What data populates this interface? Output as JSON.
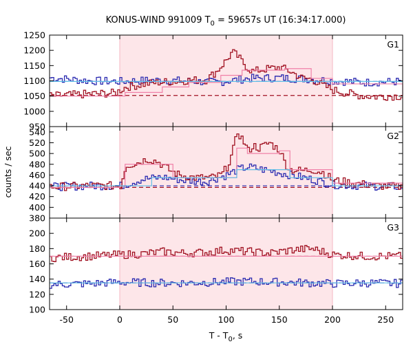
{
  "chart_data": {
    "type": "line",
    "title": "KONUS-WIND 991009 T",
    "title_sub": "0",
    "title_rest": " = 59657s UT (16:34:17.000)",
    "xlabel": "T - T",
    "xlabel_sub": "0",
    "xlabel_rest": ", s",
    "ylabel": "counts / sec",
    "xlim": [
      -66,
      266
    ],
    "xticks": [
      -50,
      0,
      50,
      100,
      150,
      200,
      250
    ],
    "shaded_interval": [
      0,
      200
    ],
    "shade_color": "#fde6e9",
    "grid": false,
    "panels": [
      {
        "name": "G1",
        "ylim": [
          950,
          1250
        ],
        "yticks": [
          950,
          1000,
          1050,
          1100,
          1150,
          1200,
          1250
        ],
        "red": {
          "color": "#a01020",
          "background": 1052,
          "fit_color": "#f080a8",
          "fit": [
            [
              -66,
              1050
            ],
            [
              5,
              1062
            ],
            [
              40,
              1080
            ],
            [
              65,
              1095
            ],
            [
              95,
              1118
            ],
            [
              115,
              1135
            ],
            [
              155,
              1140
            ],
            [
              180,
              1108
            ],
            [
              200,
              1090
            ],
            [
              266,
              1052
            ]
          ],
          "x": [
            -66,
            -30,
            -5,
            5,
            20,
            35,
            50,
            65,
            80,
            90,
            95,
            100,
            105,
            110,
            115,
            120,
            125,
            130,
            140,
            150,
            160,
            170,
            180,
            190,
            200,
            210,
            220,
            230,
            240,
            250,
            266
          ],
          "values": [
            1050,
            1057,
            1060,
            1080,
            1088,
            1095,
            1098,
            1102,
            1103,
            1130,
            1150,
            1170,
            1195,
            1180,
            1160,
            1140,
            1130,
            1135,
            1140,
            1145,
            1130,
            1110,
            1105,
            1085,
            1070,
            1062,
            1055,
            1050,
            1048,
            1050,
            1050
          ]
        },
        "blue": {
          "color": "#2a2ab0",
          "background": 1098,
          "fit_color": "#60c0e8",
          "fit": [
            [
              -66,
              1098
            ],
            [
              266,
              1098
            ]
          ],
          "x": [
            -66,
            -30,
            0,
            30,
            60,
            90,
            120,
            150,
            180,
            200,
            230,
            266
          ],
          "values": [
            1110,
            1100,
            1098,
            1102,
            1100,
            1095,
            1108,
            1110,
            1105,
            1100,
            1095,
            1098
          ]
        }
      },
      {
        "name": "G2",
        "ylim": [
          380,
          550
        ],
        "yticks": [
          380,
          400,
          420,
          440,
          460,
          480,
          500,
          520,
          540
        ],
        "red": {
          "color": "#a01020",
          "background": 437,
          "fit_color": "#f080a8",
          "fit": [
            [
              -66,
              437
            ],
            [
              0,
              440
            ],
            [
              5,
              480
            ],
            [
              40,
              480
            ],
            [
              50,
              455
            ],
            [
              95,
              455
            ],
            [
              110,
              510
            ],
            [
              120,
              500
            ],
            [
              150,
              505
            ],
            [
              160,
              470
            ],
            [
              185,
              470
            ],
            [
              200,
              445
            ],
            [
              266,
              440
            ]
          ],
          "x": [
            -66,
            -30,
            0,
            5,
            15,
            25,
            35,
            45,
            55,
            70,
            85,
            95,
            100,
            105,
            110,
            115,
            120,
            125,
            130,
            140,
            150,
            155,
            160,
            170,
            180,
            190,
            200,
            220,
            240,
            266
          ],
          "values": [
            438,
            440,
            440,
            478,
            482,
            490,
            485,
            470,
            460,
            455,
            455,
            460,
            475,
            500,
            540,
            525,
            505,
            515,
            510,
            520,
            505,
            480,
            470,
            468,
            470,
            465,
            450,
            445,
            440,
            438
          ]
        },
        "blue": {
          "color": "#2a2ab0",
          "background": 440,
          "fit_color": "#60c0e8",
          "fit": [
            [
              -66,
              440
            ],
            [
              0,
              440
            ],
            [
              30,
              455
            ],
            [
              100,
              455
            ],
            [
              110,
              470
            ],
            [
              150,
              470
            ],
            [
              160,
              455
            ],
            [
              200,
              440
            ],
            [
              266,
              440
            ]
          ],
          "x": [
            -66,
            -30,
            0,
            20,
            40,
            60,
            80,
            100,
            110,
            120,
            140,
            160,
            180,
            200,
            230,
            266
          ],
          "values": [
            438,
            440,
            440,
            452,
            456,
            450,
            448,
            460,
            470,
            475,
            468,
            460,
            452,
            442,
            440,
            438
          ]
        }
      },
      {
        "name": "G3",
        "ylim": [
          100,
          220
        ],
        "yticks": [
          100,
          120,
          140,
          160,
          180,
          200
        ],
        "red": {
          "color": "#a01020",
          "background": 170,
          "fit_color": "#f080a8",
          "fit": [
            [
              -66,
              170
            ],
            [
              266,
              170
            ]
          ],
          "x": [
            -66,
            -30,
            0,
            20,
            40,
            60,
            80,
            100,
            120,
            140,
            160,
            180,
            200,
            230,
            266
          ],
          "values": [
            168,
            170,
            172,
            173,
            176,
            174,
            175,
            178,
            176,
            174,
            178,
            180,
            172,
            170,
            170
          ]
        },
        "blue": {
          "color": "#2a2ab0",
          "background": 135,
          "fit_color": "#60c0e8",
          "fit": [
            [
              -66,
              135
            ],
            [
              266,
              135
            ]
          ],
          "x": [
            -66,
            -30,
            0,
            30,
            60,
            90,
            120,
            150,
            180,
            200,
            230,
            266
          ],
          "values": [
            133,
            134,
            136,
            135,
            135,
            136,
            137,
            136,
            135,
            134,
            135,
            134
          ]
        }
      }
    ]
  }
}
